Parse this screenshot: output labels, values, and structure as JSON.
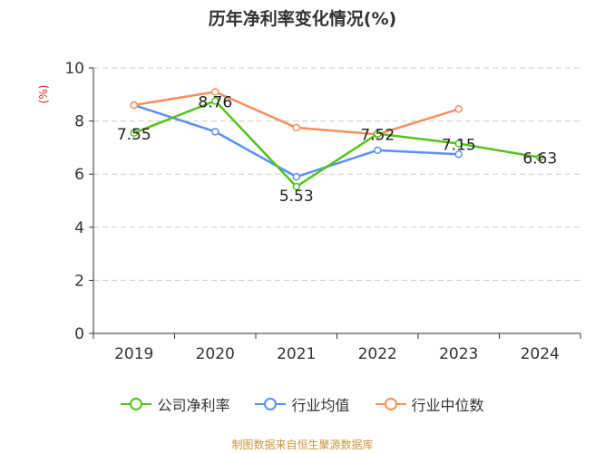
{
  "chart_data": {
    "type": "line",
    "title": "历年净利率变化情况(%)",
    "ylabel": "(%)",
    "categories": [
      "2019",
      "2020",
      "2021",
      "2022",
      "2023",
      "2024"
    ],
    "ylim": [
      0,
      10
    ],
    "yticks": [
      "0",
      "2",
      "4",
      "6",
      "8",
      "10"
    ],
    "grid": "horizontal dashed",
    "legend_position": "bottom",
    "series": [
      {
        "name": "公司净利率",
        "color": "#52c41a",
        "values": [
          7.55,
          8.76,
          5.53,
          7.52,
          7.15,
          6.63
        ],
        "labels": [
          "7.55",
          "8.76",
          "5.53",
          "7.52",
          "7.15",
          "6.63"
        ]
      },
      {
        "name": "行业均值",
        "color": "#5b8ff9",
        "values": [
          8.6,
          7.6,
          5.9,
          6.9,
          6.75,
          null
        ]
      },
      {
        "name": "行业中位数",
        "color": "#f7905c",
        "values": [
          8.6,
          9.1,
          7.75,
          7.5,
          8.45,
          null
        ]
      }
    ]
  },
  "footer": {
    "source": "制图数据来自恒生聚源数据库"
  }
}
